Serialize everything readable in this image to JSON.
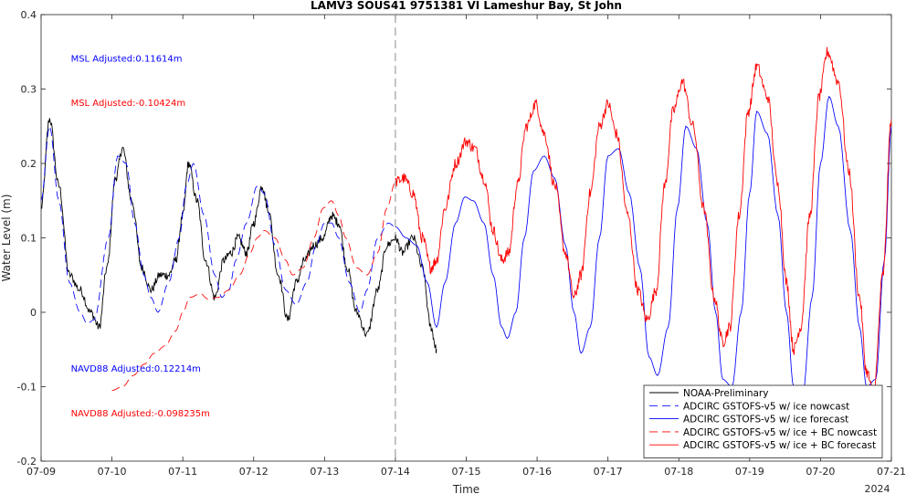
{
  "chart_data": {
    "type": "line",
    "title": "LAMV3 SOUS41 9751381 VI Lameshur Bay, St John",
    "xlabel": "Time",
    "ylabel": "Water Level (m)",
    "x_unit": "days (July 2024)",
    "xlim": [
      9,
      21
    ],
    "ylim": [
      -0.2,
      0.4
    ],
    "x_ticks": [
      9,
      10,
      11,
      12,
      13,
      14,
      15,
      16,
      17,
      18,
      19,
      20,
      21
    ],
    "x_tick_labels": [
      "07-09",
      "07-10",
      "07-11",
      "07-12",
      "07-13",
      "07-14",
      "07-15",
      "07-16",
      "07-17",
      "07-18",
      "07-19",
      "07-20",
      "07-21"
    ],
    "x_year_label": "2024",
    "y_ticks": [
      -0.2,
      -0.1,
      0,
      0.1,
      0.2,
      0.3,
      0.4
    ],
    "y_tick_labels": [
      "-0.2",
      "-0.1",
      "0",
      "0.1",
      "0.2",
      "0.3",
      "0.4"
    ],
    "nowcast_forecast_divider_x": 14,
    "grid": false,
    "legend_position": "bottom-right",
    "annotations": [
      {
        "text": "MSL Adjusted:0.11614m",
        "color": "#0000ff",
        "x": 9.42,
        "y": 0.337
      },
      {
        "text": "MSL Adjusted:-0.10424m",
        "color": "#ff0000",
        "x": 9.42,
        "y": 0.277
      },
      {
        "text": "NAVD88 Adjusted:0.12214m",
        "color": "#0000ff",
        "x": 9.42,
        "y": -0.08
      },
      {
        "text": "NAVD88 Adjusted:-0.098235m",
        "color": "#ff0000",
        "x": 9.42,
        "y": -0.14
      }
    ],
    "series": [
      {
        "name": "NOAA-Preliminary",
        "color": "#000000",
        "dash": "solid",
        "noise": 0.006,
        "x": [
          9.0,
          9.12,
          9.25,
          9.4,
          9.55,
          9.7,
          9.82,
          9.93,
          10.05,
          10.15,
          10.28,
          10.42,
          10.55,
          10.68,
          10.8,
          10.9,
          11.0,
          11.08,
          11.2,
          11.32,
          11.45,
          11.58,
          11.68,
          11.78,
          11.9,
          12.0,
          12.12,
          12.2,
          12.35,
          12.48,
          12.6,
          12.72,
          12.85,
          12.98,
          13.1,
          13.2,
          13.32,
          13.45,
          13.6,
          13.75,
          13.88,
          14.0,
          14.1,
          14.25,
          14.38,
          14.5,
          14.58
        ],
        "y": [
          0.14,
          0.26,
          0.17,
          0.05,
          0.03,
          0.0,
          -0.02,
          0.06,
          0.18,
          0.22,
          0.15,
          0.06,
          0.03,
          0.05,
          0.05,
          0.07,
          0.13,
          0.2,
          0.15,
          0.07,
          0.02,
          0.07,
          0.08,
          0.1,
          0.08,
          0.12,
          0.17,
          0.14,
          0.05,
          -0.01,
          0.04,
          0.07,
          0.09,
          0.1,
          0.13,
          0.12,
          0.06,
          0.0,
          -0.03,
          0.03,
          0.09,
          0.1,
          0.08,
          0.1,
          0.06,
          -0.02,
          -0.05
        ]
      },
      {
        "name": "ADCIRC GSTOFS-v5 w/ ice nowcast",
        "color": "#0000ff",
        "dash": "dashed",
        "noise": 0,
        "x": [
          9.0,
          9.12,
          9.25,
          9.4,
          9.55,
          9.65,
          9.75,
          9.95,
          10.08,
          10.2,
          10.32,
          10.45,
          10.55,
          10.65,
          10.8,
          10.95,
          11.05,
          11.15,
          11.3,
          11.45,
          11.55,
          11.65,
          11.75,
          11.9,
          12.05,
          12.15,
          12.3,
          12.45,
          12.6,
          12.75,
          12.88,
          13.0,
          13.1,
          13.2,
          13.35,
          13.5,
          13.6,
          13.75,
          13.9,
          14.0
        ],
        "y": [
          0.15,
          0.25,
          0.15,
          0.04,
          0.0,
          -0.015,
          -0.01,
          0.1,
          0.21,
          0.2,
          0.12,
          0.05,
          0.02,
          0.0,
          0.04,
          0.1,
          0.17,
          0.2,
          0.13,
          0.05,
          0.02,
          0.03,
          0.07,
          0.12,
          0.17,
          0.16,
          0.09,
          0.03,
          0.01,
          0.04,
          0.09,
          0.12,
          0.12,
          0.1,
          0.04,
          0.0,
          0.03,
          0.1,
          0.12,
          0.115
        ]
      },
      {
        "name": "ADCIRC GSTOFS-v5 w/ ice forecast",
        "color": "#0000ff",
        "dash": "solid",
        "noise": 0,
        "x": [
          14.0,
          14.15,
          14.3,
          14.45,
          14.58,
          14.7,
          14.85,
          14.98,
          15.1,
          15.25,
          15.38,
          15.5,
          15.58,
          15.7,
          15.82,
          15.95,
          16.1,
          16.25,
          16.4,
          16.52,
          16.62,
          16.75,
          16.88,
          17.0,
          17.15,
          17.3,
          17.45,
          17.58,
          17.7,
          17.85,
          17.98,
          18.1,
          18.25,
          18.4,
          18.52,
          18.62,
          18.75,
          18.88,
          19.0,
          19.1,
          19.25,
          19.4,
          19.52,
          19.62,
          19.75,
          19.88,
          20.0,
          20.12,
          20.25,
          20.42,
          20.55,
          20.65,
          20.78,
          20.9,
          21.0
        ],
        "y": [
          0.115,
          0.1,
          0.09,
          0.04,
          -0.02,
          0.04,
          0.12,
          0.155,
          0.15,
          0.12,
          0.05,
          -0.02,
          -0.035,
          0.0,
          0.1,
          0.19,
          0.21,
          0.18,
          0.09,
          0.0,
          -0.055,
          -0.02,
          0.1,
          0.21,
          0.22,
          0.16,
          0.06,
          -0.06,
          -0.085,
          -0.02,
          0.14,
          0.25,
          0.22,
          0.12,
          0.0,
          -0.09,
          -0.1,
          0.0,
          0.16,
          0.27,
          0.24,
          0.13,
          0.0,
          -0.1,
          -0.11,
          0.02,
          0.2,
          0.29,
          0.25,
          0.11,
          -0.02,
          -0.1,
          -0.09,
          0.07,
          0.25
        ]
      },
      {
        "name": "ADCIRC GSTOFS-v5 w/ ice + BC nowcast",
        "color": "#ff0000",
        "dash": "dashed",
        "noise": 0,
        "x": [
          10.0,
          10.15,
          10.3,
          10.45,
          10.6,
          10.75,
          10.9,
          11.0,
          11.1,
          11.25,
          11.35,
          11.5,
          11.65,
          11.8,
          11.95,
          12.05,
          12.15,
          12.3,
          12.45,
          12.55,
          12.7,
          12.85,
          12.98,
          13.1,
          13.2,
          13.3,
          13.45,
          13.6,
          13.75,
          13.88,
          14.0
        ],
        "y": [
          -0.105,
          -0.1,
          -0.085,
          -0.07,
          -0.055,
          -0.045,
          -0.025,
          0.0,
          0.02,
          0.025,
          0.018,
          0.02,
          0.03,
          0.05,
          0.08,
          0.1,
          0.11,
          0.1,
          0.07,
          0.05,
          0.06,
          0.1,
          0.14,
          0.15,
          0.13,
          0.1,
          0.06,
          0.05,
          0.08,
          0.14,
          0.175
        ]
      },
      {
        "name": "ADCIRC GSTOFS-v5 w/ ice + BC forecast",
        "color": "#ff0000",
        "dash": "solid",
        "noise": 0.008,
        "x": [
          14.0,
          14.12,
          14.25,
          14.38,
          14.5,
          14.58,
          14.7,
          14.85,
          15.0,
          15.12,
          15.25,
          15.38,
          15.5,
          15.6,
          15.72,
          15.85,
          15.98,
          16.1,
          16.25,
          16.4,
          16.52,
          16.62,
          16.75,
          16.88,
          17.0,
          17.12,
          17.28,
          17.42,
          17.55,
          17.68,
          17.8,
          17.92,
          18.05,
          18.2,
          18.35,
          18.5,
          18.62,
          18.72,
          18.85,
          18.98,
          19.1,
          19.25,
          19.4,
          19.52,
          19.62,
          19.72,
          19.85,
          19.98,
          20.1,
          20.25,
          20.4,
          20.55,
          20.65,
          20.75,
          20.88,
          21.0
        ],
        "y": [
          0.175,
          0.18,
          0.16,
          0.1,
          0.06,
          0.07,
          0.14,
          0.2,
          0.23,
          0.22,
          0.18,
          0.11,
          0.07,
          0.08,
          0.17,
          0.25,
          0.28,
          0.24,
          0.17,
          0.08,
          0.02,
          0.05,
          0.16,
          0.25,
          0.28,
          0.24,
          0.13,
          0.03,
          -0.01,
          0.03,
          0.17,
          0.27,
          0.31,
          0.25,
          0.14,
          0.02,
          -0.04,
          -0.02,
          0.13,
          0.27,
          0.33,
          0.29,
          0.17,
          0.04,
          -0.05,
          -0.02,
          0.13,
          0.29,
          0.35,
          0.31,
          0.19,
          0.02,
          -0.08,
          -0.11,
          0.05,
          0.26
        ]
      }
    ]
  }
}
